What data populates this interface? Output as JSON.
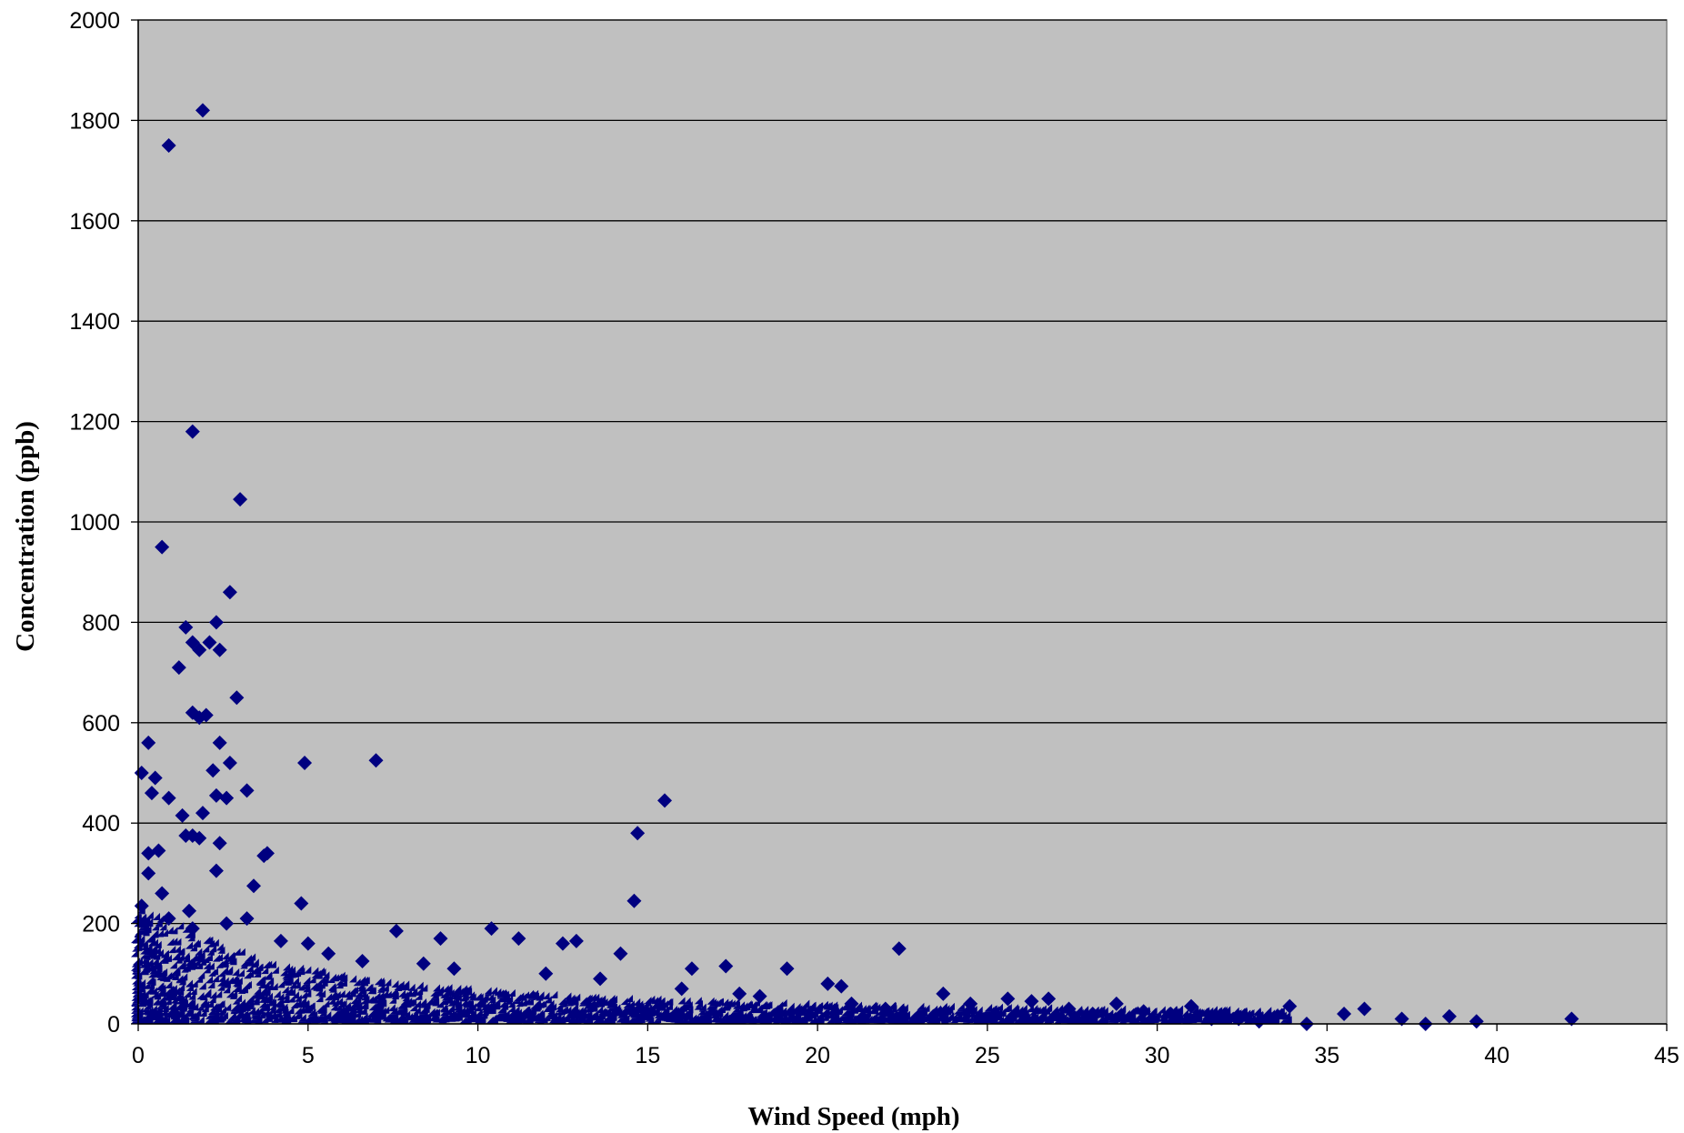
{
  "chart_data": {
    "type": "scatter",
    "title": "",
    "xlabel": "Wind Speed (mph)",
    "ylabel": "Concentration (ppb)",
    "xlim": [
      0,
      45
    ],
    "ylim": [
      0,
      2000
    ],
    "xticks": [
      0,
      5,
      10,
      15,
      20,
      25,
      30,
      35,
      40,
      45
    ],
    "yticks": [
      0,
      200,
      400,
      600,
      800,
      1000,
      1200,
      1400,
      1600,
      1800,
      2000
    ],
    "grid": "horizontal",
    "legend": "none",
    "plot_background": "#c0c0c0",
    "marker": "diamond",
    "marker_color": "#000080",
    "series": [
      {
        "x": [
          1.9,
          0.9,
          1.6,
          3.0,
          0.7,
          2.7,
          1.4,
          2.3,
          1.6,
          2.1,
          1.2,
          2.4,
          1.8,
          2.9,
          1.6,
          2.0,
          1.8,
          2.4,
          0.3,
          7.0,
          4.9,
          2.7,
          2.2,
          0.1,
          0.5,
          3.2,
          0.4,
          2.3,
          0.9,
          2.6,
          15.5,
          1.9,
          1.3,
          14.7,
          1.4,
          1.6,
          1.8,
          2.4,
          3.8,
          3.7,
          0.6,
          0.3,
          0.3,
          2.3,
          3.4,
          14.6,
          0.7,
          0.1,
          4.8,
          1.5,
          2.6,
          1.6,
          3.2,
          0.9,
          4.2,
          10.4,
          7.6,
          8.9,
          11.2,
          12.9,
          12.5,
          14.2,
          22.4,
          19.1,
          17.3,
          16.3,
          20.7,
          20.3,
          23.7,
          25.6,
          26.3,
          26.8,
          28.8,
          31.0,
          33.9,
          36.1,
          35.5,
          37.2,
          38.6,
          39.4,
          42.2,
          37.9,
          34.4,
          33.0,
          32.4,
          31.6,
          30.4,
          29.6,
          28.1,
          27.4,
          24.5,
          22.0,
          21.0,
          18.3,
          17.7,
          16.0,
          13.6,
          12.0,
          9.3,
          8.4,
          6.6,
          5.6,
          5.0
        ],
        "y": [
          1820,
          1750,
          1180,
          1045,
          950,
          860,
          790,
          800,
          760,
          760,
          710,
          745,
          745,
          650,
          620,
          615,
          610,
          560,
          560,
          525,
          520,
          520,
          505,
          500,
          490,
          465,
          460,
          455,
          450,
          450,
          445,
          420,
          415,
          380,
          375,
          375,
          370,
          360,
          340,
          335,
          345,
          340,
          300,
          305,
          275,
          245,
          260,
          235,
          240,
          225,
          200,
          190,
          210,
          210,
          165,
          190,
          185,
          170,
          170,
          165,
          160,
          140,
          150,
          110,
          115,
          110,
          75,
          80,
          60,
          50,
          45,
          50,
          40,
          35,
          35,
          30,
          20,
          10,
          15,
          5,
          10,
          0,
          0,
          5,
          10,
          10,
          20,
          25,
          20,
          30,
          40,
          30,
          40,
          55,
          60,
          70,
          90,
          100,
          110,
          120,
          125,
          140,
          160
        ]
      }
    ]
  }
}
